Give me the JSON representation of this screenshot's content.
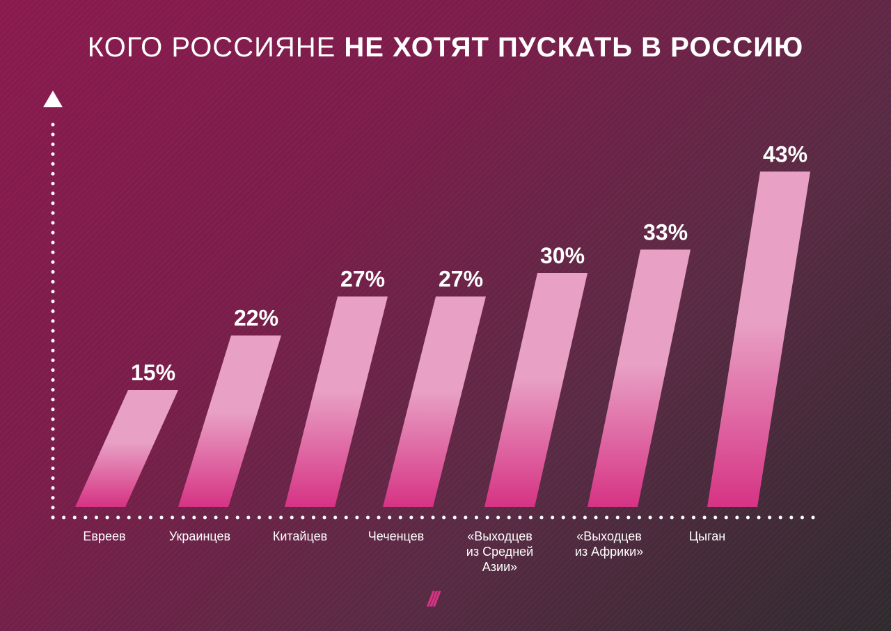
{
  "title": {
    "light": "КОГО РОССИЯНЕ",
    "bold": "НЕ ХОТЯТ ПУСКАТЬ В РОССИЮ"
  },
  "chart_data": {
    "type": "bar",
    "title": "КОГО РОССИЯНЕ НЕ ХОТЯТ ПУСКАТЬ В РОССИЮ",
    "categories": [
      [
        "Евреев"
      ],
      [
        "Украинцев"
      ],
      [
        "Китайцев"
      ],
      [
        "Чеченцев"
      ],
      [
        "«Выходцев",
        "из Средней",
        "Азии»"
      ],
      [
        "«Выходцев",
        "из Африки»"
      ],
      [
        "Цыган"
      ]
    ],
    "values": [
      15,
      22,
      27,
      27,
      30,
      33,
      43
    ],
    "value_labels": [
      "15%",
      "22%",
      "27%",
      "27%",
      "30%",
      "33%",
      "43%"
    ],
    "unit": "%",
    "xlabel": "",
    "ylabel": "",
    "grid": false,
    "colors": {
      "bar_top": "#e8a0c4",
      "bar_bottom": "#d63384",
      "axis": "#ffffff"
    }
  },
  "logo": {
    "text": "///",
    "color": "#d63384"
  }
}
